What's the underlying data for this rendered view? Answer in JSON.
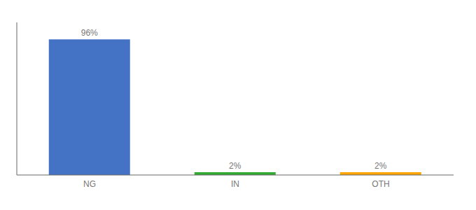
{
  "chart_data": {
    "type": "bar",
    "categories": [
      "NG",
      "IN",
      "OTH"
    ],
    "values": [
      96,
      2,
      2
    ],
    "value_labels": [
      "96%",
      "2%",
      "2%"
    ],
    "colors": [
      "#4472C4",
      "#33AA33",
      "#FFA500"
    ],
    "ylim": [
      0,
      108
    ],
    "data_labels": true,
    "tick_labels": "x",
    "grid": false
  }
}
